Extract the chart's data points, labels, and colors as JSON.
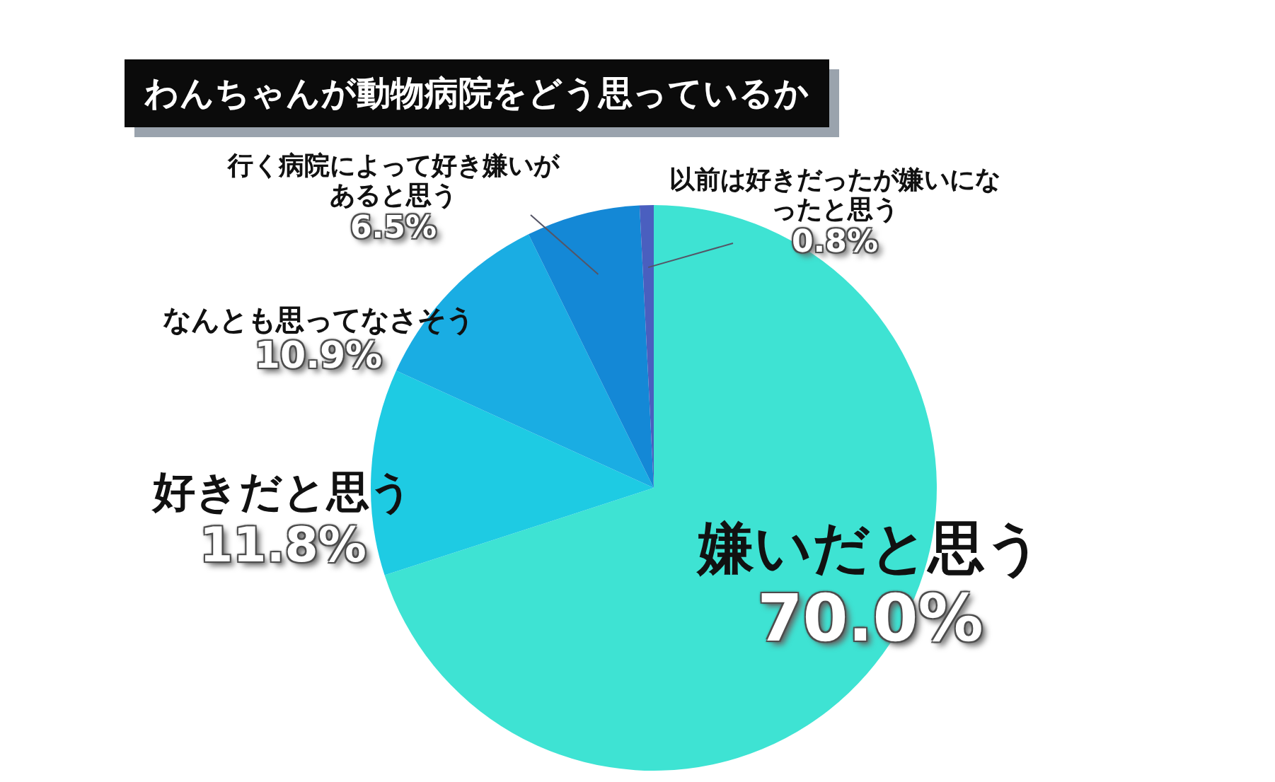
{
  "chart_data": {
    "type": "pie",
    "title": "わんちゃんが動物病院をどう思っているか",
    "categories": [
      "嫌いだと思う",
      "好きだと思う",
      "なんとも思ってなさそう",
      "行く病院によって好き嫌いがあると思う",
      "以前は好きだったが嫌いになったと思う"
    ],
    "values": [
      70.0,
      11.8,
      10.9,
      6.5,
      0.8
    ],
    "value_labels": [
      "70.0%",
      "11.8%",
      "10.9%",
      "6.5%",
      "0.8%"
    ],
    "colors": [
      "#3ee3d3",
      "#1ecbe3",
      "#1aade3",
      "#1488d6",
      "#4a5fbf"
    ]
  }
}
